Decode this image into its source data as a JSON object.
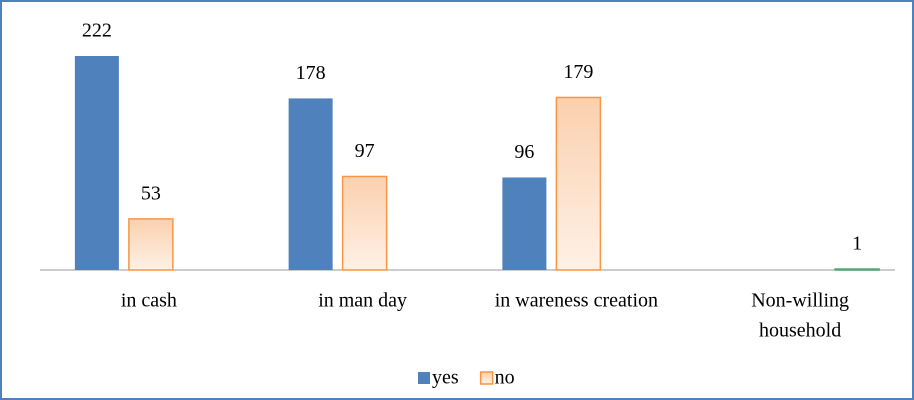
{
  "chart_data": {
    "type": "bar",
    "categories": [
      "in cash",
      "in man day",
      "in wareness creation",
      [
        "Non-willing",
        "household"
      ]
    ],
    "series": [
      {
        "name": "yes",
        "color": "#4f81bd",
        "values": [
          222,
          178,
          96,
          null
        ]
      },
      {
        "name": "no",
        "color": "#f79646",
        "values": [
          53,
          97,
          179,
          1
        ],
        "point_colors": [
          "#f79646",
          "#f79646",
          "#f79646",
          "#4ea672"
        ]
      }
    ],
    "legend": "bottom"
  }
}
